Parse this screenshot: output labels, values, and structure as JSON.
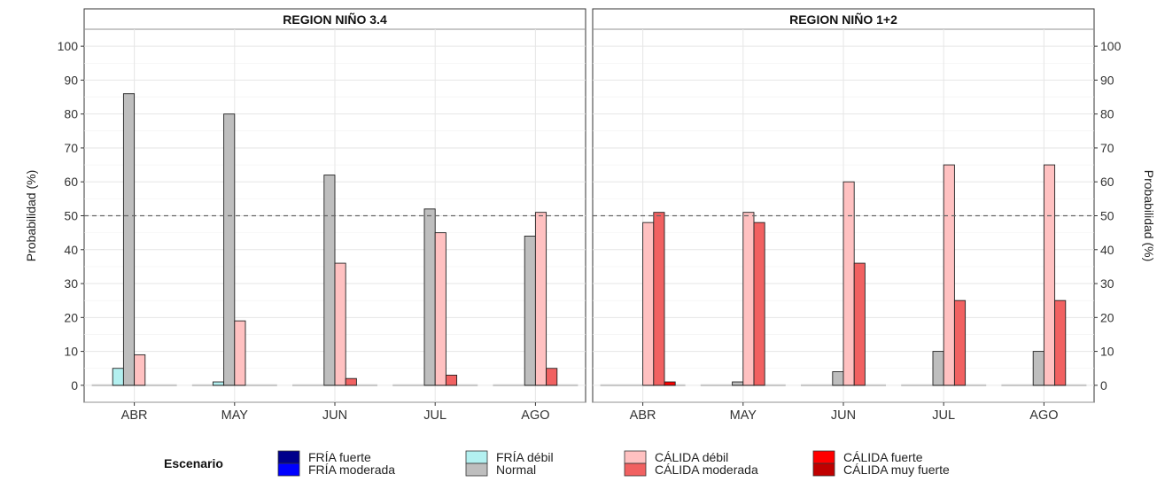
{
  "chart_data": {
    "type": "bar",
    "y_axis_label": "Probabilidad (%)",
    "ylim": [
      0,
      100
    ],
    "yticks": [
      0,
      10,
      20,
      30,
      40,
      50,
      60,
      70,
      80,
      90,
      100
    ],
    "reference_line": {
      "y": 50,
      "style": "dashed"
    },
    "grid": true,
    "categories": [
      "ABR",
      "MAY",
      "JUN",
      "JUL",
      "AGO"
    ],
    "legend": {
      "title": "Escenario",
      "position": "bottom",
      "items": [
        {
          "name": "FRÍA fuerte",
          "color": "#00008B"
        },
        {
          "name": "FRÍA moderada",
          "color": "#0000FF"
        },
        {
          "name": "FRÍA débil",
          "color": "#B3F0F0"
        },
        {
          "name": "Normal",
          "color": "#BEBEBE"
        },
        {
          "name": "CÁLIDA débil",
          "color": "#FFC1C1"
        },
        {
          "name": "CÁLIDA moderada",
          "color": "#F16161"
        },
        {
          "name": "CÁLIDA fuerte",
          "color": "#FF0000"
        },
        {
          "name": "CÁLIDA muy fuerte",
          "color": "#C00000"
        }
      ]
    },
    "panels": [
      {
        "title": "REGION NIÑO 3.4",
        "series": [
          {
            "name": "FRÍA fuerte",
            "values": [
              0,
              0,
              0,
              0,
              0
            ]
          },
          {
            "name": "FRÍA moderada",
            "values": [
              0,
              0,
              0,
              0,
              0
            ]
          },
          {
            "name": "FRÍA débil",
            "values": [
              5,
              1,
              0,
              0,
              0
            ]
          },
          {
            "name": "Normal",
            "values": [
              86,
              80,
              62,
              52,
              44
            ]
          },
          {
            "name": "CÁLIDA débil",
            "values": [
              9,
              19,
              36,
              45,
              51
            ]
          },
          {
            "name": "CÁLIDA moderada",
            "values": [
              0,
              0,
              2,
              3,
              5
            ]
          },
          {
            "name": "CÁLIDA fuerte",
            "values": [
              0,
              0,
              0,
              0,
              0
            ]
          },
          {
            "name": "CÁLIDA muy fuerte",
            "values": [
              0,
              0,
              0,
              0,
              0
            ]
          }
        ]
      },
      {
        "title": "REGION NIÑO 1+2",
        "series": [
          {
            "name": "FRÍA fuerte",
            "values": [
              0,
              0,
              0,
              0,
              0
            ]
          },
          {
            "name": "FRÍA moderada",
            "values": [
              0,
              0,
              0,
              0,
              0
            ]
          },
          {
            "name": "FRÍA débil",
            "values": [
              0,
              0,
              0,
              0,
              0
            ]
          },
          {
            "name": "Normal",
            "values": [
              0,
              1,
              4,
              10,
              10
            ]
          },
          {
            "name": "CÁLIDA débil",
            "values": [
              48,
              51,
              60,
              65,
              65
            ]
          },
          {
            "name": "CÁLIDA moderada",
            "values": [
              51,
              48,
              36,
              25,
              25
            ]
          },
          {
            "name": "CÁLIDA fuerte",
            "values": [
              1,
              0,
              0,
              0,
              0
            ]
          },
          {
            "name": "CÁLIDA muy fuerte",
            "values": [
              0,
              0,
              0,
              0,
              0
            ]
          }
        ]
      }
    ]
  }
}
